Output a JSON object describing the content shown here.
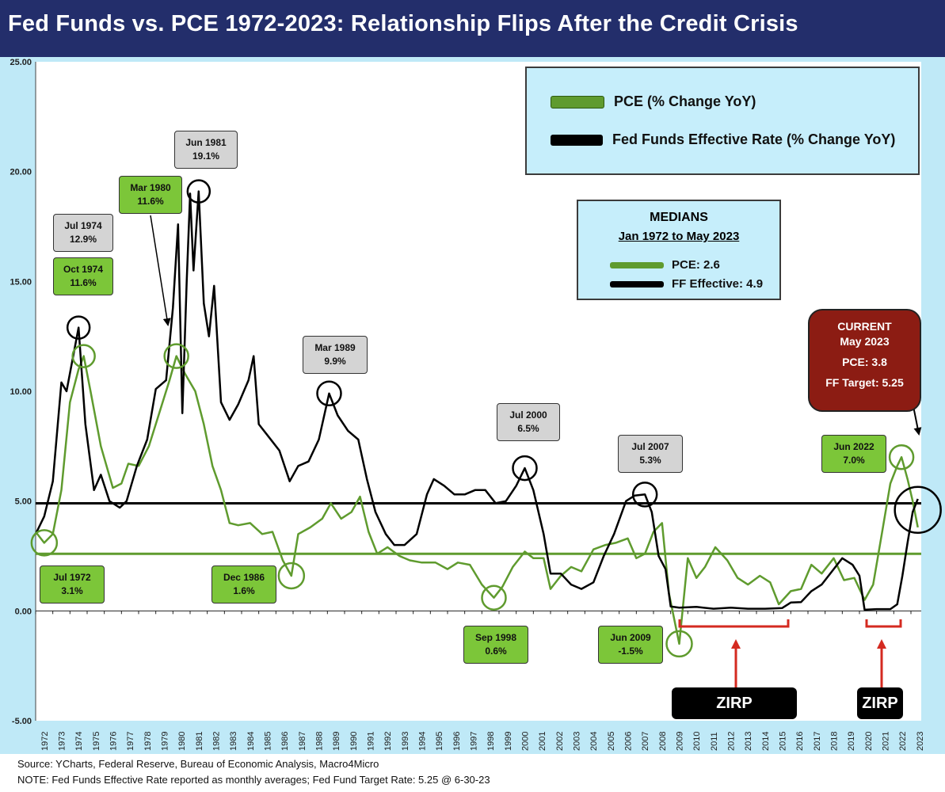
{
  "title": "Fed Funds vs. PCE 1972-2023: Relationship Flips After the Credit Crisis",
  "colors": {
    "title_bg": "#232e6b",
    "chart_bg": "#bfe9f7",
    "plot_bg": "#ffffff",
    "pce": "#5f9b2e",
    "fed_funds": "#000000",
    "annotation_green": "#7cc639",
    "annotation_gray": "#d4d4d4",
    "current_box": "#8c1c13",
    "arrow_red": "#d42a20"
  },
  "legend": {
    "pce_label": "PCE (% Change YoY)",
    "ff_label": "Fed Funds Effective Rate (% Change YoY)"
  },
  "medians": {
    "heading": "MEDIANS",
    "period": "Jan 1972 to May 2023",
    "pce_label": "PCE: 2.6",
    "ff_label": "FF Effective: 4.9"
  },
  "current": {
    "heading": "CURRENT",
    "date": "May 2023",
    "pce": "PCE: 3.8",
    "ff": "FF Target: 5.25"
  },
  "zirp": [
    "ZIRP",
    "ZIRP"
  ],
  "annotations": [
    {
      "date": "Jul 1974",
      "value": "12.9%",
      "style": "gray"
    },
    {
      "date": "Oct 1974",
      "value": "11.6%",
      "style": "green"
    },
    {
      "date": "Mar 1980",
      "value": "11.6%",
      "style": "green"
    },
    {
      "date": "Jun 1981",
      "value": "19.1%",
      "style": "gray"
    },
    {
      "date": "Mar 1989",
      "value": "9.9%",
      "style": "gray"
    },
    {
      "date": "Jul 2000",
      "value": "6.5%",
      "style": "gray"
    },
    {
      "date": "Jul 2007",
      "value": "5.3%",
      "style": "gray"
    },
    {
      "date": "Jun 2022",
      "value": "7.0%",
      "style": "green"
    },
    {
      "date": "Jul 1972",
      "value": "3.1%",
      "style": "green"
    },
    {
      "date": "Dec 1986",
      "value": "1.6%",
      "style": "green"
    },
    {
      "date": "Sep 1998",
      "value": "0.6%",
      "style": "green"
    },
    {
      "date": "Jun 2009",
      "value": "-1.5%",
      "style": "green"
    }
  ],
  "footer": {
    "source": "Source: YCharts, Federal Reserve, Bureau of Economic Analysis, Macro4Micro",
    "note": "NOTE: Fed Funds Effective Rate reported as monthly averages; Fed Fund Target Rate: 5.25 @ 6-30-23"
  },
  "chart_data": {
    "type": "line",
    "ylim": [
      -5,
      25
    ],
    "yticks": [
      "25.00",
      "20.00",
      "15.00",
      "10.00",
      "5.00",
      "0.00",
      "-5.00"
    ],
    "ytick_values": [
      25,
      20,
      15,
      10,
      5,
      0,
      -5
    ],
    "xlim": [
      1972,
      2023.6
    ],
    "xticks": [
      "1972",
      "1973",
      "1974",
      "1975",
      "1976",
      "1977",
      "1978",
      "1979",
      "1980",
      "1981",
      "1982",
      "1983",
      "1984",
      "1985",
      "1986",
      "1987",
      "1988",
      "1989",
      "1990",
      "1991",
      "1992",
      "1993",
      "1994",
      "1995",
      "1996",
      "1997",
      "1998",
      "1999",
      "2000",
      "2001",
      "2002",
      "2003",
      "2004",
      "2005",
      "2006",
      "2007",
      "2008",
      "2009",
      "2010",
      "2011",
      "2012",
      "2013",
      "2014",
      "2015",
      "2016",
      "2017",
      "2018",
      "2019",
      "2020",
      "2021",
      "2022",
      "2023"
    ],
    "medians": {
      "pce": 2.6,
      "fed_funds": 4.9
    },
    "series": [
      {
        "name": "PCE (% Change YoY)",
        "points": [
          [
            1972.0,
            3.6
          ],
          [
            1972.5,
            3.1
          ],
          [
            1973.0,
            3.5
          ],
          [
            1973.5,
            5.5
          ],
          [
            1974.0,
            9.5
          ],
          [
            1974.5,
            11.0
          ],
          [
            1974.8,
            11.6
          ],
          [
            1975.2,
            10.0
          ],
          [
            1975.8,
            7.5
          ],
          [
            1976.5,
            5.6
          ],
          [
            1977.0,
            5.8
          ],
          [
            1977.4,
            6.7
          ],
          [
            1978.0,
            6.6
          ],
          [
            1978.6,
            7.5
          ],
          [
            1979.2,
            9.0
          ],
          [
            1979.8,
            10.5
          ],
          [
            1980.2,
            11.6
          ],
          [
            1980.7,
            10.8
          ],
          [
            1981.3,
            10.0
          ],
          [
            1981.8,
            8.5
          ],
          [
            1982.3,
            6.6
          ],
          [
            1982.8,
            5.5
          ],
          [
            1983.3,
            4.0
          ],
          [
            1983.8,
            3.9
          ],
          [
            1984.5,
            4.0
          ],
          [
            1985.2,
            3.5
          ],
          [
            1985.8,
            3.6
          ],
          [
            1986.4,
            2.3
          ],
          [
            1986.9,
            1.6
          ],
          [
            1987.3,
            3.5
          ],
          [
            1988.0,
            3.8
          ],
          [
            1988.7,
            4.2
          ],
          [
            1989.2,
            4.9
          ],
          [
            1989.8,
            4.2
          ],
          [
            1990.4,
            4.5
          ],
          [
            1990.9,
            5.2
          ],
          [
            1991.4,
            3.6
          ],
          [
            1991.9,
            2.6
          ],
          [
            1992.5,
            2.9
          ],
          [
            1993.2,
            2.5
          ],
          [
            1993.8,
            2.3
          ],
          [
            1994.5,
            2.2
          ],
          [
            1995.3,
            2.2
          ],
          [
            1996.0,
            1.9
          ],
          [
            1996.6,
            2.2
          ],
          [
            1997.3,
            2.1
          ],
          [
            1998.0,
            1.2
          ],
          [
            1998.7,
            0.6
          ],
          [
            1999.2,
            1.1
          ],
          [
            1999.8,
            2.0
          ],
          [
            2000.5,
            2.7
          ],
          [
            2001.0,
            2.4
          ],
          [
            2001.6,
            2.4
          ],
          [
            2002.0,
            1.0
          ],
          [
            2002.6,
            1.6
          ],
          [
            2003.2,
            2.0
          ],
          [
            2003.8,
            1.8
          ],
          [
            2004.5,
            2.8
          ],
          [
            2005.2,
            3.0
          ],
          [
            2005.8,
            3.1
          ],
          [
            2006.5,
            3.3
          ],
          [
            2007.0,
            2.4
          ],
          [
            2007.5,
            2.6
          ],
          [
            2008.0,
            3.6
          ],
          [
            2008.5,
            4.0
          ],
          [
            2008.9,
            0.8
          ],
          [
            2009.5,
            -1.5
          ],
          [
            2010.0,
            2.4
          ],
          [
            2010.5,
            1.5
          ],
          [
            2011.0,
            2.0
          ],
          [
            2011.6,
            2.9
          ],
          [
            2012.3,
            2.3
          ],
          [
            2012.9,
            1.5
          ],
          [
            2013.5,
            1.2
          ],
          [
            2014.2,
            1.6
          ],
          [
            2014.8,
            1.3
          ],
          [
            2015.3,
            0.3
          ],
          [
            2016.0,
            0.9
          ],
          [
            2016.6,
            1.0
          ],
          [
            2017.2,
            2.1
          ],
          [
            2017.8,
            1.7
          ],
          [
            2018.5,
            2.4
          ],
          [
            2019.1,
            1.4
          ],
          [
            2019.7,
            1.5
          ],
          [
            2020.3,
            0.5
          ],
          [
            2020.8,
            1.2
          ],
          [
            2021.3,
            3.5
          ],
          [
            2021.8,
            5.8
          ],
          [
            2022.2,
            6.6
          ],
          [
            2022.45,
            7.0
          ],
          [
            2022.8,
            6.0
          ],
          [
            2023.1,
            5.0
          ],
          [
            2023.4,
            3.8
          ]
        ]
      },
      {
        "name": "Fed Funds Effective Rate (% Change YoY)",
        "points": [
          [
            1972.0,
            3.5
          ],
          [
            1972.5,
            4.3
          ],
          [
            1973.0,
            5.9
          ],
          [
            1973.5,
            10.4
          ],
          [
            1973.8,
            10.0
          ],
          [
            1974.5,
            12.9
          ],
          [
            1974.9,
            8.5
          ],
          [
            1975.4,
            5.5
          ],
          [
            1975.8,
            6.2
          ],
          [
            1976.3,
            5.0
          ],
          [
            1976.9,
            4.7
          ],
          [
            1977.3,
            5.0
          ],
          [
            1977.9,
            6.6
          ],
          [
            1978.5,
            7.8
          ],
          [
            1979.0,
            10.1
          ],
          [
            1979.6,
            10.5
          ],
          [
            1980.0,
            13.8
          ],
          [
            1980.3,
            17.6
          ],
          [
            1980.55,
            9.0
          ],
          [
            1980.8,
            15.0
          ],
          [
            1981.0,
            19.0
          ],
          [
            1981.2,
            15.5
          ],
          [
            1981.5,
            19.1
          ],
          [
            1981.8,
            14.0
          ],
          [
            1982.1,
            12.5
          ],
          [
            1982.4,
            14.8
          ],
          [
            1982.8,
            9.5
          ],
          [
            1983.3,
            8.7
          ],
          [
            1983.8,
            9.4
          ],
          [
            1984.4,
            10.5
          ],
          [
            1984.7,
            11.6
          ],
          [
            1985.0,
            8.5
          ],
          [
            1985.6,
            7.9
          ],
          [
            1986.2,
            7.3
          ],
          [
            1986.8,
            5.9
          ],
          [
            1987.3,
            6.6
          ],
          [
            1987.9,
            6.8
          ],
          [
            1988.5,
            7.8
          ],
          [
            1989.1,
            9.9
          ],
          [
            1989.6,
            8.9
          ],
          [
            1990.2,
            8.2
          ],
          [
            1990.8,
            7.8
          ],
          [
            1991.3,
            6.0
          ],
          [
            1991.8,
            4.5
          ],
          [
            1992.4,
            3.5
          ],
          [
            1992.9,
            3.0
          ],
          [
            1993.5,
            3.0
          ],
          [
            1994.2,
            3.5
          ],
          [
            1994.8,
            5.3
          ],
          [
            1995.2,
            6.0
          ],
          [
            1995.8,
            5.7
          ],
          [
            1996.4,
            5.3
          ],
          [
            1997.0,
            5.3
          ],
          [
            1997.6,
            5.5
          ],
          [
            1998.2,
            5.5
          ],
          [
            1998.8,
            4.9
          ],
          [
            1999.4,
            5.0
          ],
          [
            2000.0,
            5.7
          ],
          [
            2000.5,
            6.5
          ],
          [
            2001.0,
            5.5
          ],
          [
            2001.6,
            3.5
          ],
          [
            2002.0,
            1.7
          ],
          [
            2002.6,
            1.7
          ],
          [
            2003.2,
            1.2
          ],
          [
            2003.8,
            1.0
          ],
          [
            2004.5,
            1.3
          ],
          [
            2005.1,
            2.5
          ],
          [
            2005.7,
            3.5
          ],
          [
            2006.4,
            5.0
          ],
          [
            2006.9,
            5.25
          ],
          [
            2007.5,
            5.3
          ],
          [
            2007.9,
            4.5
          ],
          [
            2008.3,
            2.5
          ],
          [
            2008.7,
            1.9
          ],
          [
            2009.0,
            0.2
          ],
          [
            2009.5,
            0.15
          ],
          [
            2010.5,
            0.18
          ],
          [
            2011.5,
            0.1
          ],
          [
            2012.5,
            0.15
          ],
          [
            2013.5,
            0.1
          ],
          [
            2014.5,
            0.1
          ],
          [
            2015.5,
            0.13
          ],
          [
            2016.0,
            0.38
          ],
          [
            2016.6,
            0.4
          ],
          [
            2017.2,
            0.9
          ],
          [
            2017.8,
            1.2
          ],
          [
            2018.5,
            1.9
          ],
          [
            2019.0,
            2.4
          ],
          [
            2019.6,
            2.1
          ],
          [
            2020.0,
            1.6
          ],
          [
            2020.3,
            0.05
          ],
          [
            2021.0,
            0.08
          ],
          [
            2021.8,
            0.08
          ],
          [
            2022.2,
            0.3
          ],
          [
            2022.5,
            1.6
          ],
          [
            2022.8,
            3.1
          ],
          [
            2023.1,
            4.5
          ],
          [
            2023.4,
            5.1
          ]
        ]
      }
    ]
  }
}
